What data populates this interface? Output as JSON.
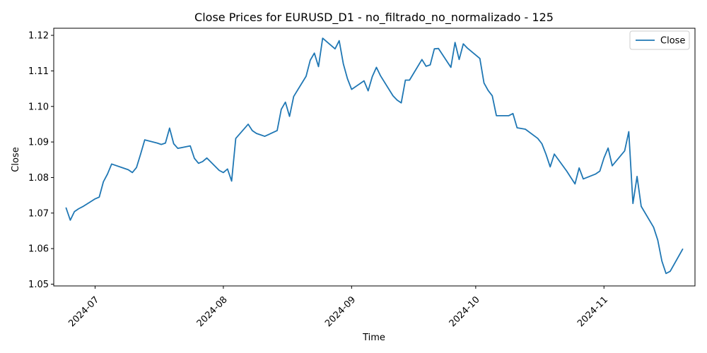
{
  "chart_data": {
    "type": "line",
    "title": "Close Prices for EURUSD_D1 - no_filtrado_no_normalizado - 125",
    "xlabel": "Time",
    "ylabel": "Close",
    "xlim": [
      "2024-06-21",
      "2024-11-23"
    ],
    "ylim": [
      1.0495,
      1.122
    ],
    "x_ticks": [
      "2024-07-01",
      "2024-08-01",
      "2024-09-01",
      "2024-10-01",
      "2024-11-01"
    ],
    "x_tick_labels": [
      "2024-07",
      "2024-08",
      "2024-09",
      "2024-10",
      "2024-11"
    ],
    "y_ticks": [
      1.05,
      1.06,
      1.07,
      1.08,
      1.09,
      1.1,
      1.11,
      1.12
    ],
    "y_tick_labels": [
      "1.05",
      "1.06",
      "1.07",
      "1.08",
      "1.09",
      "1.10",
      "1.11",
      "1.12"
    ],
    "legend": {
      "placement": "top-right"
    },
    "grid": false,
    "series": [
      {
        "name": "Close",
        "color": "#1f77b4",
        "points": [
          [
            "2024-06-24",
            1.0714
          ],
          [
            "2024-06-25",
            1.068
          ],
          [
            "2024-06-26",
            1.0704
          ],
          [
            "2024-06-27",
            1.0712
          ],
          [
            "2024-06-28",
            1.0718
          ],
          [
            "2024-07-01",
            1.074
          ],
          [
            "2024-07-02",
            1.0745
          ],
          [
            "2024-07-03",
            1.0788
          ],
          [
            "2024-07-04",
            1.081
          ],
          [
            "2024-07-05",
            1.0838
          ],
          [
            "2024-07-08",
            1.0826
          ],
          [
            "2024-07-09",
            1.0822
          ],
          [
            "2024-07-10",
            1.0814
          ],
          [
            "2024-07-11",
            1.0828
          ],
          [
            "2024-07-12",
            1.0866
          ],
          [
            "2024-07-13",
            1.0906
          ],
          [
            "2024-07-16",
            1.0897
          ],
          [
            "2024-07-17",
            1.0893
          ],
          [
            "2024-07-18",
            1.0897
          ],
          [
            "2024-07-19",
            1.0939
          ],
          [
            "2024-07-20",
            1.0895
          ],
          [
            "2024-07-21",
            1.0882
          ],
          [
            "2024-07-24",
            1.0889
          ],
          [
            "2024-07-25",
            1.0854
          ],
          [
            "2024-07-26",
            1.084
          ],
          [
            "2024-07-27",
            1.0845
          ],
          [
            "2024-07-28",
            1.0855
          ],
          [
            "2024-07-31",
            1.082
          ],
          [
            "2024-08-01",
            1.0814
          ],
          [
            "2024-08-02",
            1.0824
          ],
          [
            "2024-08-03",
            1.079
          ],
          [
            "2024-08-04",
            1.091
          ],
          [
            "2024-08-07",
            1.095
          ],
          [
            "2024-08-08",
            1.0932
          ],
          [
            "2024-08-09",
            1.0924
          ],
          [
            "2024-08-10",
            1.092
          ],
          [
            "2024-08-11",
            1.0916
          ],
          [
            "2024-08-14",
            1.0932
          ],
          [
            "2024-08-15",
            1.0992
          ],
          [
            "2024-08-16",
            1.1012
          ],
          [
            "2024-08-17",
            1.0972
          ],
          [
            "2024-08-18",
            1.1028
          ],
          [
            "2024-08-21",
            1.1085
          ],
          [
            "2024-08-22",
            1.113
          ],
          [
            "2024-08-23",
            1.115
          ],
          [
            "2024-08-24",
            1.1112
          ],
          [
            "2024-08-25",
            1.1192
          ],
          [
            "2024-08-28",
            1.1162
          ],
          [
            "2024-08-29",
            1.1185
          ],
          [
            "2024-08-30",
            1.112
          ],
          [
            "2024-08-31",
            1.1078
          ],
          [
            "2024-09-01",
            1.1048
          ],
          [
            "2024-09-04",
            1.1072
          ],
          [
            "2024-09-05",
            1.1044
          ],
          [
            "2024-09-06",
            1.1084
          ],
          [
            "2024-09-07",
            1.111
          ],
          [
            "2024-09-08",
            1.1086
          ],
          [
            "2024-09-11",
            1.103
          ],
          [
            "2024-09-12",
            1.1018
          ],
          [
            "2024-09-13",
            1.101
          ],
          [
            "2024-09-14",
            1.1074
          ],
          [
            "2024-09-15",
            1.1074
          ],
          [
            "2024-09-18",
            1.1132
          ],
          [
            "2024-09-19",
            1.1113
          ],
          [
            "2024-09-20",
            1.1117
          ],
          [
            "2024-09-21",
            1.1162
          ],
          [
            "2024-09-22",
            1.1163
          ],
          [
            "2024-09-25",
            1.111
          ],
          [
            "2024-09-26",
            1.118
          ],
          [
            "2024-09-27",
            1.1132
          ],
          [
            "2024-09-28",
            1.1176
          ],
          [
            "2024-09-29",
            1.1164
          ],
          [
            "2024-10-02",
            1.1135
          ],
          [
            "2024-10-03",
            1.1066
          ],
          [
            "2024-10-04",
            1.1045
          ],
          [
            "2024-10-05",
            1.103
          ],
          [
            "2024-10-06",
            1.0974
          ],
          [
            "2024-10-09",
            1.0974
          ],
          [
            "2024-10-10",
            1.098
          ],
          [
            "2024-10-11",
            1.094
          ],
          [
            "2024-10-12",
            1.0938
          ],
          [
            "2024-10-13",
            1.0936
          ],
          [
            "2024-10-16",
            1.091
          ],
          [
            "2024-10-17",
            1.0895
          ],
          [
            "2024-10-18",
            1.0865
          ],
          [
            "2024-10-19",
            1.083
          ],
          [
            "2024-10-20",
            1.0866
          ],
          [
            "2024-10-23",
            1.0818
          ],
          [
            "2024-10-24",
            1.08
          ],
          [
            "2024-10-25",
            1.0782
          ],
          [
            "2024-10-26",
            1.0827
          ],
          [
            "2024-10-27",
            1.0796
          ],
          [
            "2024-10-30",
            1.081
          ],
          [
            "2024-10-31",
            1.0818
          ],
          [
            "2024-11-01",
            1.0855
          ],
          [
            "2024-11-02",
            1.0883
          ],
          [
            "2024-11-03",
            1.0833
          ],
          [
            "2024-11-06",
            1.0875
          ],
          [
            "2024-11-07",
            1.0929
          ],
          [
            "2024-11-08",
            1.0727
          ],
          [
            "2024-11-09",
            1.0803
          ],
          [
            "2024-11-10",
            1.0719
          ],
          [
            "2024-11-13",
            1.066
          ],
          [
            "2024-11-14",
            1.0624
          ],
          [
            "2024-11-15",
            1.0565
          ],
          [
            "2024-11-16",
            1.053
          ],
          [
            "2024-11-17",
            1.0536
          ],
          [
            "2024-11-20",
            1.0598
          ]
        ]
      }
    ]
  }
}
